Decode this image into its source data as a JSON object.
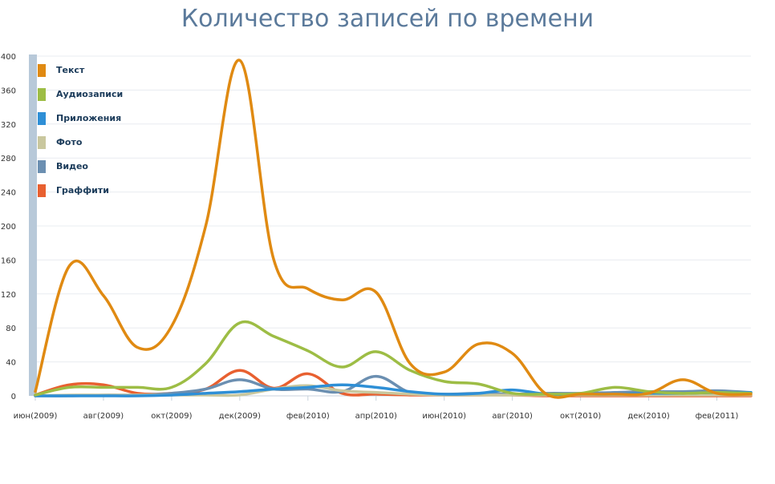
{
  "chart_data": {
    "type": "line",
    "title": "Количество записей по времени",
    "xlabel": "",
    "ylabel": "",
    "ylim": [
      0,
      400
    ],
    "yticks": [
      0,
      40,
      80,
      120,
      160,
      200,
      240,
      280,
      320,
      360,
      400
    ],
    "x_tick_labels": [
      "июн(2009)",
      "авг(2009)",
      "окт(2009)",
      "дек(2009)",
      "фев(2010)",
      "апр(2010)",
      "июн(2010)",
      "авг(2010)",
      "окт(2010)",
      "дек(2010)",
      "фев(2011)"
    ],
    "x_tick_positions": [
      0,
      2,
      4,
      6,
      8,
      10,
      12,
      14,
      16,
      18,
      20
    ],
    "x": [
      0,
      1,
      2,
      3,
      4,
      5,
      6,
      7,
      8,
      9,
      10,
      11,
      12,
      13,
      14,
      15,
      16,
      17,
      18,
      19,
      20,
      21
    ],
    "grid": true,
    "legend_position": "top-left",
    "series": [
      {
        "name": "Текст",
        "color": "#e08a12",
        "values": [
          5,
          153,
          118,
          57,
          82,
          200,
          395,
          160,
          126,
          113,
          122,
          38,
          28,
          61,
          50,
          2,
          2,
          2,
          3,
          19,
          3,
          2
        ]
      },
      {
        "name": "Аудиозаписи",
        "color": "#9dbd45",
        "values": [
          1,
          10,
          10,
          10,
          10,
          38,
          86,
          70,
          53,
          34,
          52,
          30,
          17,
          14,
          3,
          2,
          3,
          10,
          5,
          3,
          4,
          3
        ]
      },
      {
        "name": "Приложения",
        "color": "#2e8fd6",
        "values": [
          0,
          0,
          0,
          0,
          1,
          3,
          5,
          8,
          10,
          13,
          10,
          5,
          2,
          3,
          7,
          2,
          2,
          2,
          3,
          3,
          4,
          4
        ]
      },
      {
        "name": "Фото",
        "color": "#c9c79e",
        "values": [
          0,
          1,
          1,
          1,
          1,
          1,
          1,
          8,
          12,
          6,
          4,
          2,
          1,
          1,
          1,
          1,
          1,
          1,
          1,
          1,
          1,
          1
        ]
      },
      {
        "name": "Видео",
        "color": "#6b8fb1",
        "values": [
          0,
          0,
          1,
          1,
          3,
          8,
          19,
          8,
          8,
          5,
          23,
          4,
          2,
          3,
          2,
          3,
          3,
          4,
          5,
          5,
          6,
          4
        ]
      },
      {
        "name": "Граффити",
        "color": "#e86030",
        "values": [
          1,
          13,
          13,
          3,
          3,
          8,
          30,
          9,
          26,
          3,
          2,
          1,
          1,
          1,
          1,
          0,
          0,
          0,
          0,
          0,
          0,
          0
        ]
      }
    ]
  }
}
